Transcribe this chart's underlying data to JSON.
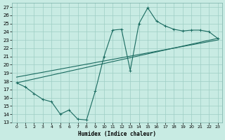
{
  "xlabel": "Humidex (Indice chaleur)",
  "xlim": [
    -0.5,
    23.5
  ],
  "ylim": [
    13,
    27.5
  ],
  "yticks": [
    13,
    14,
    15,
    16,
    17,
    18,
    19,
    20,
    21,
    22,
    23,
    24,
    25,
    26,
    27
  ],
  "xticks": [
    0,
    1,
    2,
    3,
    4,
    5,
    6,
    7,
    8,
    9,
    10,
    11,
    12,
    13,
    14,
    15,
    16,
    17,
    18,
    19,
    20,
    21,
    22,
    23
  ],
  "bg_color": "#c8ebe3",
  "grid_color": "#9ecec4",
  "line_color": "#1a6b60",
  "line1_x": [
    0,
    1,
    2,
    3,
    4,
    5,
    6,
    7,
    8,
    9,
    10,
    11,
    12,
    13,
    14,
    15,
    16,
    17,
    18,
    19,
    20,
    21,
    22,
    23
  ],
  "line1_y": [
    17.8,
    17.3,
    16.5,
    15.8,
    15.5,
    14.0,
    14.5,
    13.4,
    13.3,
    16.8,
    21.0,
    24.2,
    24.3,
    19.3,
    25.0,
    26.9,
    25.3,
    24.7,
    24.3,
    24.1,
    24.2,
    24.2,
    24.0,
    23.2
  ],
  "line2_x": [
    0,
    23
  ],
  "line2_y": [
    17.8,
    23.2
  ],
  "line3_x": [
    0,
    23
  ],
  "line3_y": [
    18.5,
    23.0
  ]
}
